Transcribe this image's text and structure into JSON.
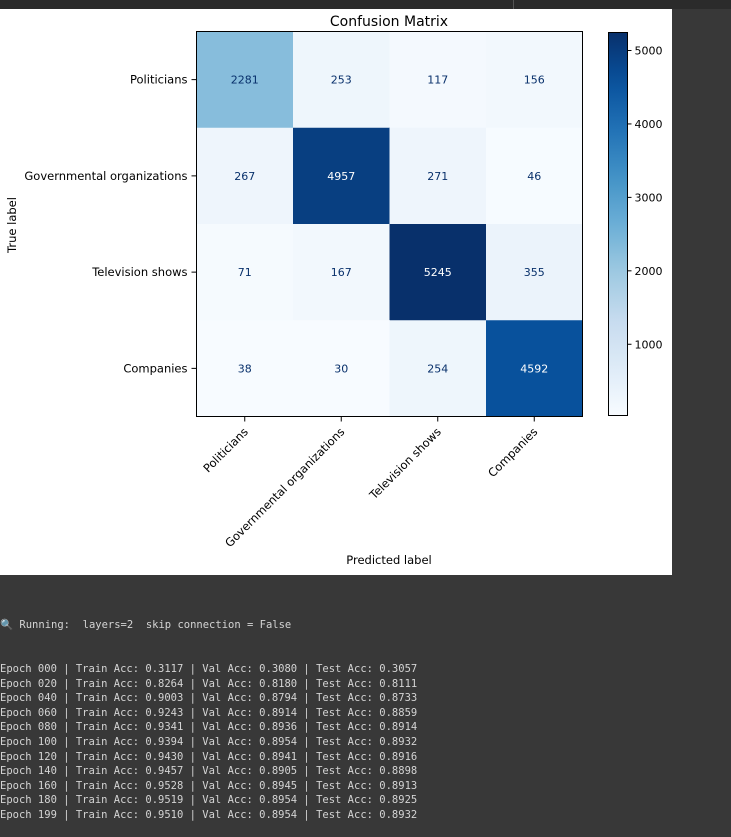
{
  "chart_data": {
    "type": "heatmap",
    "title": "Confusion Matrix",
    "xlabel": "Predicted label",
    "ylabel": "True label",
    "x_categories": [
      "Politicians",
      "Governmental organizations",
      "Television shows",
      "Companies"
    ],
    "y_categories": [
      "Politicians",
      "Governmental organizations",
      "Television shows",
      "Companies"
    ],
    "values": [
      [
        2281,
        253,
        117,
        156
      ],
      [
        267,
        4957,
        271,
        46
      ],
      [
        71,
        167,
        5245,
        355
      ],
      [
        38,
        30,
        254,
        4592
      ]
    ],
    "colormap": "Blues",
    "colorbar_ticks": [
      1000,
      2000,
      3000,
      4000,
      5000
    ],
    "colorbar_range": [
      30,
      5245
    ]
  },
  "console": {
    "running_line": "Running:  layers=2  skip connection = False",
    "running_icon": "magnifier-icon",
    "lines": [
      "Epoch 000 | Train Acc: 0.3117 | Val Acc: 0.3080 | Test Acc: 0.3057",
      "Epoch 020 | Train Acc: 0.8264 | Val Acc: 0.8180 | Test Acc: 0.8111",
      "Epoch 040 | Train Acc: 0.9003 | Val Acc: 0.8794 | Test Acc: 0.8733",
      "Epoch 060 | Train Acc: 0.9243 | Val Acc: 0.8914 | Test Acc: 0.8859",
      "Epoch 080 | Train Acc: 0.9341 | Val Acc: 0.8936 | Test Acc: 0.8914",
      "Epoch 100 | Train Acc: 0.9394 | Val Acc: 0.8954 | Test Acc: 0.8932",
      "Epoch 120 | Train Acc: 0.9430 | Val Acc: 0.8941 | Test Acc: 0.8916",
      "Epoch 140 | Train Acc: 0.9457 | Val Acc: 0.8905 | Test Acc: 0.8898",
      "Epoch 160 | Train Acc: 0.9528 | Val Acc: 0.8945 | Test Acc: 0.8913",
      "Epoch 180 | Train Acc: 0.9519 | Val Acc: 0.8954 | Test Acc: 0.8925",
      "Epoch 199 | Train Acc: 0.9510 | Val Acc: 0.8954 | Test Acc: 0.8932"
    ]
  }
}
